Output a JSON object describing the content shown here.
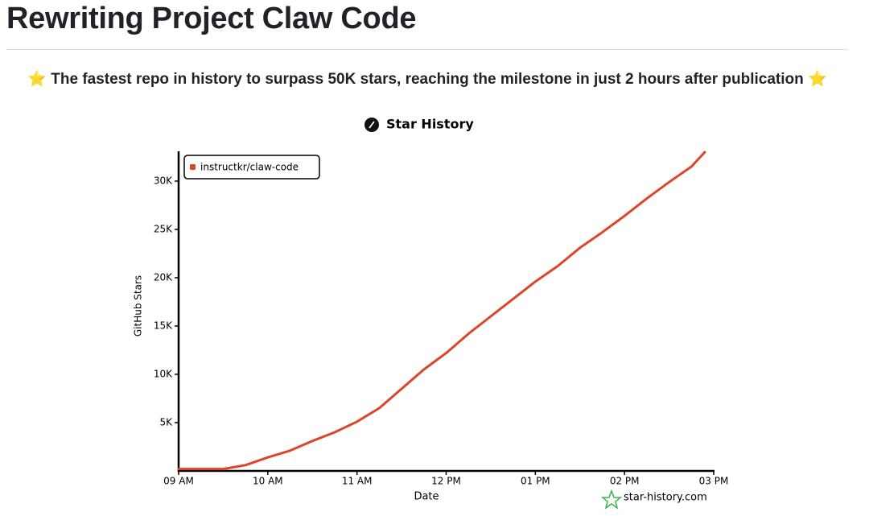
{
  "header": {
    "title": "Rewriting Project Claw Code",
    "subtitle": "⭐ The fastest repo in history to surpass 50K stars, reaching the milestone in just 2 hours after publication ⭐"
  },
  "chart_data": {
    "type": "line",
    "title": "Star History",
    "x_label": "Date",
    "y_label": "GitHub Stars",
    "watermark": "star-history.com",
    "x": [
      9.0,
      9.5,
      9.75,
      10.0,
      10.25,
      10.5,
      10.75,
      11.0,
      11.25,
      11.5,
      11.75,
      12.0,
      12.25,
      12.5,
      12.75,
      13.0,
      13.25,
      13.5,
      13.75,
      14.0,
      14.25,
      14.5,
      14.75,
      14.9
    ],
    "series": [
      {
        "name": "instructkr/claw-code",
        "color": "#dd4528",
        "values": [
          200,
          200,
          600,
          1400,
          2100,
          3100,
          4000,
          5100,
          6500,
          8500,
          10500,
          12200,
          14200,
          16000,
          17800,
          19600,
          21200,
          23100,
          24700,
          26400,
          28200,
          29900,
          31500,
          33000
        ]
      }
    ],
    "xlim": [
      9,
      15
    ],
    "xticks": [
      {
        "value": 9,
        "label": "09 AM"
      },
      {
        "value": 10,
        "label": "10 AM"
      },
      {
        "value": 11,
        "label": "11 AM"
      },
      {
        "value": 12,
        "label": "12 PM"
      },
      {
        "value": 13,
        "label": "01 PM"
      },
      {
        "value": 14,
        "label": "02 PM"
      },
      {
        "value": 15,
        "label": "03 PM"
      }
    ],
    "ylim": [
      0,
      33000
    ],
    "yticks": [
      {
        "value": 5000,
        "label": "5K"
      },
      {
        "value": 10000,
        "label": "10K"
      },
      {
        "value": 15000,
        "label": "15K"
      },
      {
        "value": 20000,
        "label": "20K"
      },
      {
        "value": 25000,
        "label": "25K"
      },
      {
        "value": 30000,
        "label": "30K"
      }
    ],
    "legend": "upper left"
  }
}
